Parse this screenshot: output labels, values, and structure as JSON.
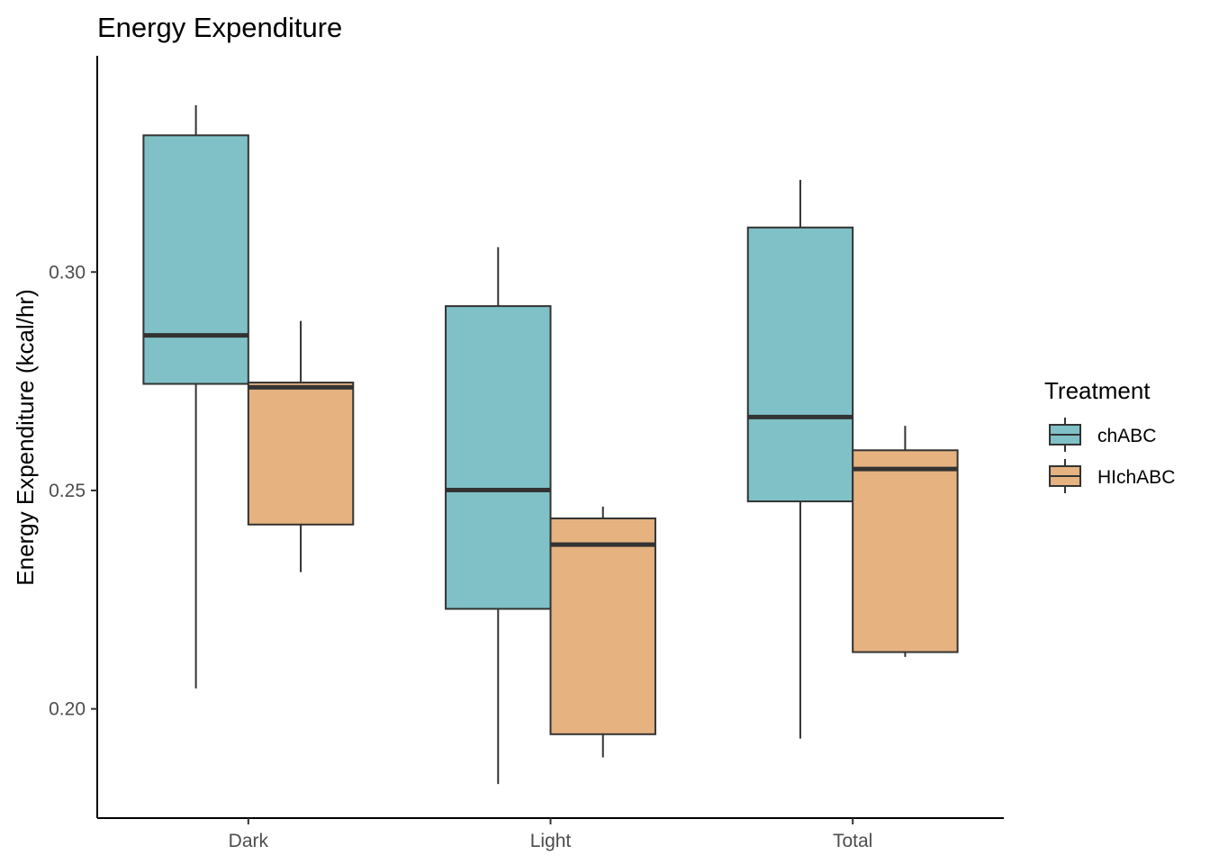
{
  "chart_data": {
    "type": "boxplot",
    "title": "Energy Expenditure",
    "xlabel": "",
    "ylabel": "Energy Expenditure (kcal/hr)",
    "categories": [
      "Dark",
      "Light",
      "Total"
    ],
    "ylim": [
      0.175,
      0.3495
    ],
    "yticks": [
      0.2,
      0.25,
      0.3
    ],
    "ytick_labels": [
      "0.20",
      "0.25",
      "0.30"
    ],
    "grid": false,
    "legend": {
      "title": "Treatment",
      "position": "right"
    },
    "series": [
      {
        "name": "chABC",
        "color": "#7fc1c6",
        "boxes": [
          {
            "category": "Dark",
            "min": 0.2047,
            "q1": 0.2744,
            "median": 0.2855,
            "q3": 0.3313,
            "max": 0.3382
          },
          {
            "category": "Light",
            "min": 0.1828,
            "q1": 0.2229,
            "median": 0.2501,
            "q3": 0.2922,
            "max": 0.3057
          },
          {
            "category": "Total",
            "min": 0.1932,
            "q1": 0.2475,
            "median": 0.2668,
            "q3": 0.3102,
            "max": 0.3211
          }
        ]
      },
      {
        "name": "HIchABC",
        "color": "#e5b280",
        "boxes": [
          {
            "category": "Dark",
            "min": 0.2313,
            "q1": 0.2422,
            "median": 0.2736,
            "q3": 0.2747,
            "max": 0.2888
          },
          {
            "category": "Light",
            "min": 0.1889,
            "q1": 0.1942,
            "median": 0.2376,
            "q3": 0.2436,
            "max": 0.2463
          },
          {
            "category": "Total",
            "min": 0.2119,
            "q1": 0.213,
            "median": 0.2549,
            "q3": 0.2592,
            "max": 0.2648
          }
        ]
      }
    ]
  }
}
